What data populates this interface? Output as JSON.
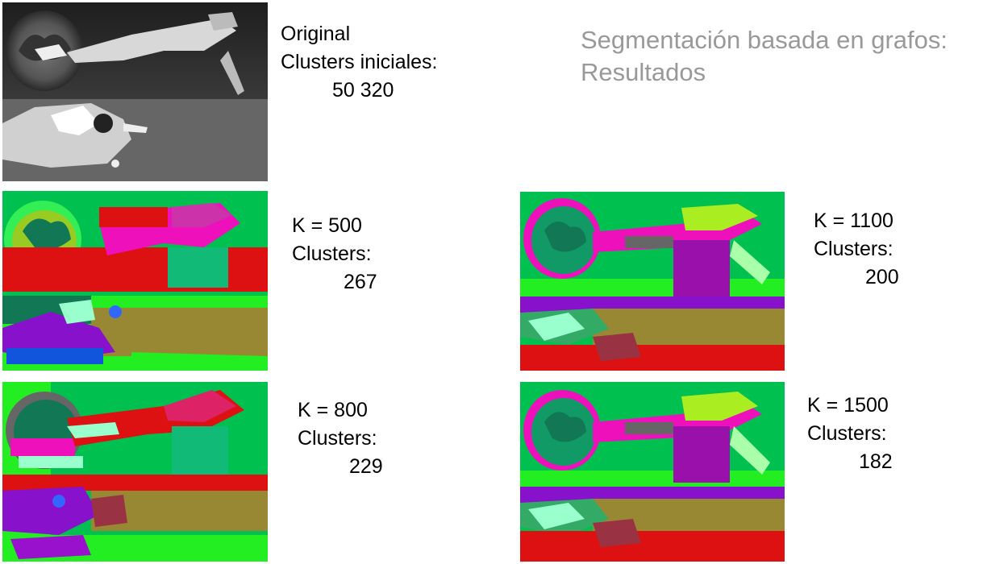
{
  "title": {
    "line1": "Segmentación basada en grafos:",
    "line2": "Resultados"
  },
  "original": {
    "label": "Original",
    "clusters_label": "Clusters iniciales:",
    "clusters_value": "50 320",
    "image_description_icon": "grayscale-photo"
  },
  "results": [
    {
      "k_label": "K = 500",
      "clusters_label": "Clusters:",
      "clusters_value": "267"
    },
    {
      "k_label": "K = 1100",
      "clusters_label": "Clusters:",
      "clusters_value": "200"
    },
    {
      "k_label": "K = 800",
      "clusters_label": "Clusters:",
      "clusters_value": "229"
    },
    {
      "k_label": "K = 1500",
      "clusters_label": "Clusters:",
      "clusters_value": "182"
    }
  ],
  "colors": {
    "title": "#999999",
    "segment_green": "#00c050",
    "segment_bright_green": "#22ee22",
    "segment_red": "#dd1111",
    "segment_magenta": "#ee11bb",
    "segment_purple": "#8811cc",
    "segment_olive": "#998833"
  }
}
